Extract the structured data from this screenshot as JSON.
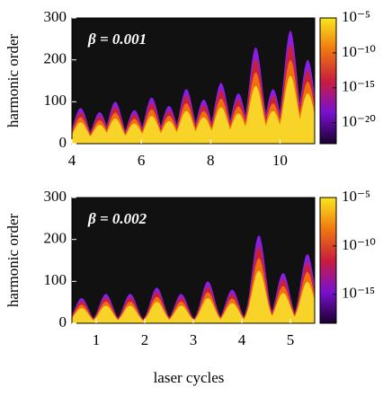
{
  "chart_data": [
    {
      "type": "heatmap",
      "annotation": "β = 0.001",
      "ylabel": "harmonic order",
      "xlim": [
        4,
        11
      ],
      "xticks": [
        4,
        6,
        8,
        10
      ],
      "ylim": [
        0,
        300
      ],
      "yticks": [
        0,
        100,
        200,
        300
      ],
      "x": [
        4.25,
        4.8,
        5.25,
        5.8,
        6.3,
        6.8,
        7.3,
        7.8,
        8.3,
        8.8,
        9.3,
        9.8,
        10.3,
        10.8
      ],
      "values": [
        85,
        75,
        100,
        80,
        110,
        90,
        130,
        105,
        145,
        120,
        230,
        130,
        270,
        200
      ],
      "colorbar_scale": "log",
      "clim": [
        -23,
        -5
      ],
      "cticks": [
        {
          "value": -5,
          "label": "10⁻⁵"
        },
        {
          "value": -10,
          "label": "10⁻¹⁰"
        },
        {
          "value": -15,
          "label": "10⁻¹⁵"
        },
        {
          "value": -20,
          "label": "10⁻²⁰"
        }
      ]
    },
    {
      "type": "heatmap",
      "annotation": "β = 0.002",
      "ylabel": "harmonic order",
      "xlabel": "laser cycles",
      "xlim": [
        0.5,
        5.5
      ],
      "xticks": [
        1,
        2,
        3,
        4,
        5
      ],
      "ylim": [
        0,
        300
      ],
      "yticks": [
        0,
        100,
        200,
        300
      ],
      "x": [
        0.7,
        1.2,
        1.7,
        2.25,
        2.75,
        3.3,
        3.8,
        4.35,
        4.85,
        5.35
      ],
      "values": [
        60,
        70,
        70,
        85,
        70,
        100,
        80,
        210,
        120,
        165
      ],
      "colorbar_scale": "log",
      "clim": [
        -18,
        -5
      ],
      "cticks": [
        {
          "value": -5,
          "label": "10⁻⁵"
        },
        {
          "value": -10,
          "label": "10⁻¹⁰"
        },
        {
          "value": -15,
          "label": "10⁻¹⁵"
        }
      ]
    }
  ]
}
